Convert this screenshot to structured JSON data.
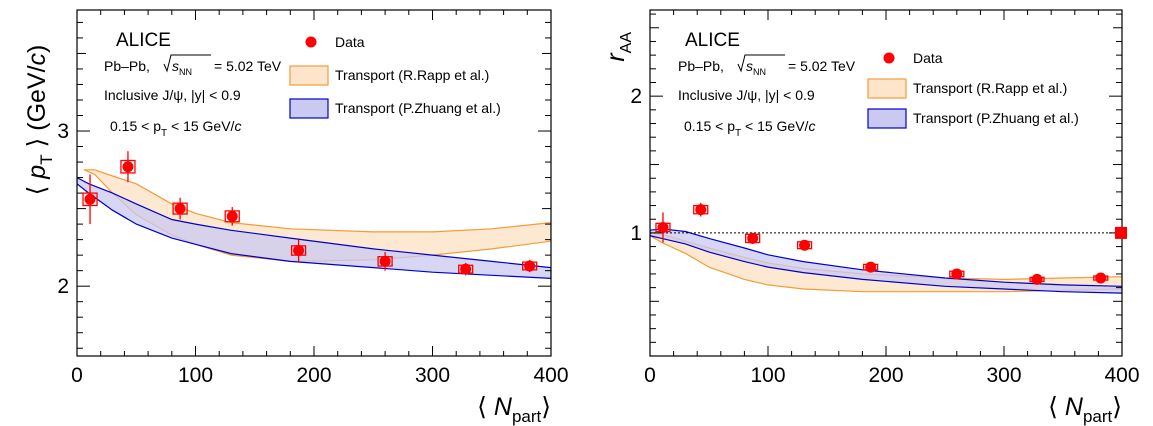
{
  "colors": {
    "data": "#ff0000",
    "rapp_fill": "#fde5cc",
    "rapp_line": "#f39c3a",
    "zhuang_fill": "#c9c9f2",
    "zhuang_line": "#0000cc",
    "ref_line": "#000000"
  },
  "chart_data": [
    {
      "type": "scatter",
      "experiment": "ALICE",
      "system_label": "Pb–Pb,",
      "energy_label": "= 5.02 TeV",
      "selection_label": "Inclusive J/ψ, |y| < 0.9",
      "pt_range_label": "0.15 < p",
      "pt_range_tail": " < 15 GeV/",
      "xlabel": "N",
      "xlabel_sub": "part",
      "ylabel": "p",
      "ylabel_sub": "T",
      "ylabel_unit": " (GeV/",
      "xlim": [
        0,
        400
      ],
      "ylim": [
        1.55,
        3.78
      ],
      "xticks": [
        0,
        100,
        200,
        300,
        400
      ],
      "xtick_labels": [
        "0",
        "100",
        "200",
        "300",
        "400"
      ],
      "yticks": [
        2,
        3
      ],
      "ytick_labels": [
        "2",
        "3"
      ],
      "legend": [
        "Data",
        "Transport (R.Rapp et al.)",
        "Transport (P.Zhuang et al.)"
      ],
      "data": {
        "name": "Data",
        "x": [
          11,
          43,
          87,
          131,
          187,
          260,
          328,
          382
        ],
        "y": [
          2.56,
          2.77,
          2.5,
          2.45,
          2.23,
          2.16,
          2.11,
          2.13
        ],
        "stat_err": [
          0.16,
          0.1,
          0.07,
          0.06,
          0.07,
          0.06,
          0.04,
          0.04
        ],
        "sys_err": [
          0.04,
          0.04,
          0.035,
          0.035,
          0.03,
          0.03,
          0.025,
          0.025
        ]
      },
      "bands": [
        {
          "name": "Transport (R.Rapp et al.)",
          "x": [
            6,
            15,
            30,
            50,
            80,
            100,
            130,
            180,
            250,
            300,
            350,
            400
          ],
          "upper": [
            2.75,
            2.75,
            2.71,
            2.66,
            2.53,
            2.47,
            2.41,
            2.37,
            2.35,
            2.35,
            2.37,
            2.41
          ],
          "lower": [
            2.75,
            2.72,
            2.6,
            2.46,
            2.33,
            2.27,
            2.2,
            2.16,
            2.17,
            2.2,
            2.24,
            2.29
          ]
        },
        {
          "name": "Transport (P.Zhuang et al.)",
          "x": [
            0,
            10,
            30,
            50,
            80,
            100,
            130,
            180,
            250,
            300,
            350,
            400
          ],
          "upper": [
            2.7,
            2.66,
            2.6,
            2.53,
            2.43,
            2.4,
            2.36,
            2.31,
            2.24,
            2.2,
            2.16,
            2.12
          ],
          "lower": [
            2.66,
            2.6,
            2.49,
            2.4,
            2.31,
            2.27,
            2.21,
            2.16,
            2.12,
            2.09,
            2.07,
            2.05
          ]
        }
      ]
    },
    {
      "type": "scatter",
      "experiment": "ALICE",
      "system_label": "Pb–Pb,",
      "energy_label": "= 5.02 TeV",
      "selection_label": "Inclusive J/ψ, |y| < 0.9",
      "pt_range_label": "0.15 < p",
      "pt_range_tail": " < 15 GeV/",
      "xlabel": "N",
      "xlabel_sub": "part",
      "ylabel": "r",
      "ylabel_sub": "AA",
      "xlim": [
        0,
        400
      ],
      "ylim": [
        0.1,
        2.63
      ],
      "xticks": [
        0,
        100,
        200,
        300,
        400
      ],
      "xtick_labels": [
        "0",
        "100",
        "200",
        "300",
        "400"
      ],
      "yticks": [
        1,
        2
      ],
      "ytick_labels": [
        "1",
        "2"
      ],
      "legend": [
        "Data",
        "Transport (R.Rapp et al.)",
        "Transport (P.Zhuang et al.)"
      ],
      "reference_line": 1.0,
      "global_uncertainty": 1.0,
      "data": {
        "name": "Data",
        "x": [
          11,
          43,
          87,
          131,
          187,
          260,
          328,
          382
        ],
        "y": [
          1.04,
          1.17,
          0.96,
          0.91,
          0.75,
          0.7,
          0.66,
          0.67
        ],
        "stat_err": [
          0.11,
          0.05,
          0.04,
          0.03,
          0.03,
          0.03,
          0.02,
          0.02
        ],
        "sys_err": [
          0.03,
          0.03,
          0.03,
          0.025,
          0.02,
          0.02,
          0.015,
          0.015
        ]
      },
      "bands": [
        {
          "name": "Transport (R.Rapp et al.)",
          "x": [
            0,
            10,
            30,
            50,
            80,
            100,
            130,
            180,
            250,
            300,
            350,
            400
          ],
          "upper": [
            1.0,
            0.99,
            0.94,
            0.89,
            0.82,
            0.78,
            0.74,
            0.7,
            0.67,
            0.66,
            0.67,
            0.68
          ],
          "lower": [
            0.98,
            0.93,
            0.85,
            0.75,
            0.66,
            0.62,
            0.59,
            0.57,
            0.57,
            0.57,
            0.58,
            0.59
          ]
        },
        {
          "name": "Transport (P.Zhuang et al.)",
          "x": [
            0,
            10,
            30,
            50,
            80,
            100,
            130,
            180,
            250,
            300,
            350,
            400
          ],
          "upper": [
            1.02,
            1.03,
            1.01,
            0.96,
            0.89,
            0.84,
            0.79,
            0.73,
            0.67,
            0.64,
            0.62,
            0.61
          ],
          "lower": [
            0.98,
            0.96,
            0.92,
            0.86,
            0.79,
            0.75,
            0.71,
            0.66,
            0.61,
            0.59,
            0.57,
            0.56
          ]
        }
      ]
    }
  ]
}
